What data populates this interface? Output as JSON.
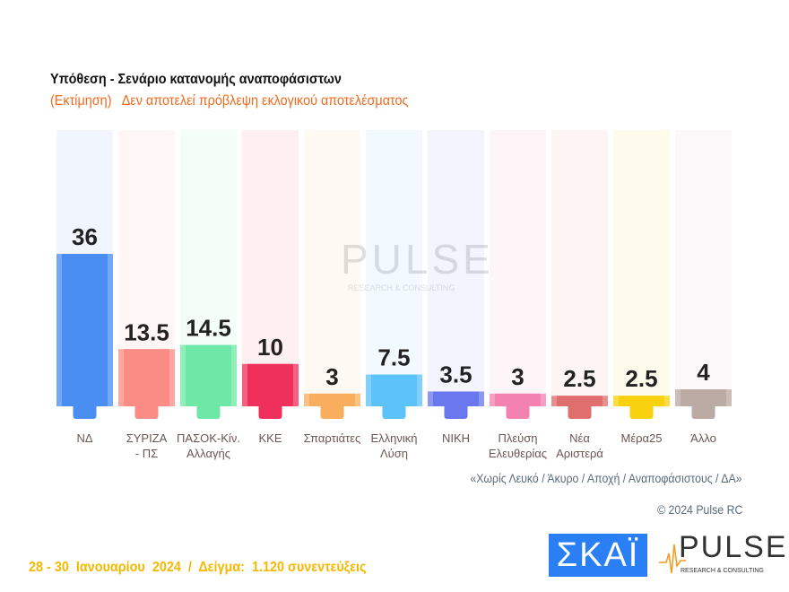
{
  "title": "Υπόθεση - Σενάριο κατανομής αναποφάσιστων",
  "subtitle": "(Εκτίμηση)   Δεν αποτελεί πρόβλεψη εκλογικού αποτελέσματος",
  "note": "«Χωρίς Λευκό / Άκυρο / Αποχή / Αναποφάσιστους / ΔΑ»",
  "copyright": "© 2024 Pulse RC",
  "footer": "28 - 30  Ιανουαρίου  2024  /  Δείγμα:  1.120 συνεντεύξεις",
  "logos": {
    "skai": "ΣΚΑΪ",
    "pulse": "PULSE",
    "pulse_sub": "RESEARCH & CONSULTING"
  },
  "chart_data": {
    "type": "bar",
    "categories": [
      "ΝΔ",
      "ΣΥΡΙΖΑ\n- ΠΣ",
      "ΠΑΣΟΚ-Κίν.\nΑλλαγής",
      "ΚΚΕ",
      "Σπαρτιάτες",
      "Ελληνική\nΛύση",
      "ΝΙΚΗ",
      "Πλεύση\nΕλευθερίας",
      "Νέα\nΑριστερά",
      "Μέρα25",
      "Άλλο"
    ],
    "values": [
      36,
      13.5,
      14.5,
      10,
      3,
      7.5,
      3.5,
      3,
      2.5,
      2.5,
      4
    ],
    "colors": [
      "#4a8ef2",
      "#f98c84",
      "#6de8a6",
      "#f0305c",
      "#f8ae5c",
      "#5cc2fa",
      "#6a78f0",
      "#f482b0",
      "#e06e6e",
      "#f8d20e",
      "#bcaaa4"
    ],
    "data_labels": [
      "36",
      "13.5",
      "14.5",
      "10",
      "3",
      "7.5",
      "3.5",
      "3",
      "2.5",
      "2.5",
      "4"
    ],
    "ylim": [
      0,
      60
    ]
  }
}
